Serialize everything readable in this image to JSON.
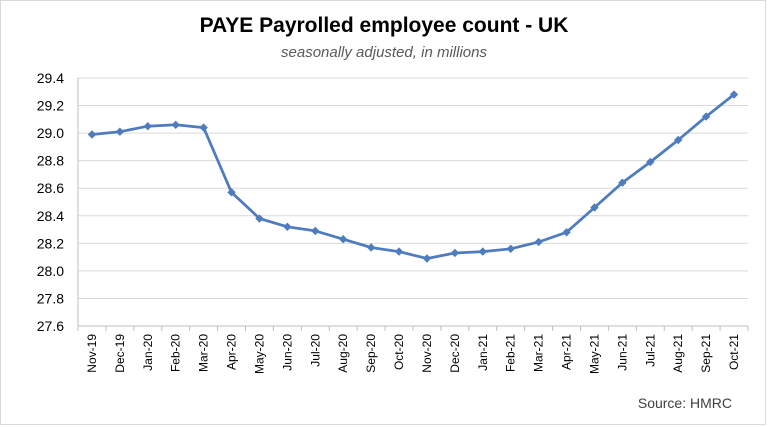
{
  "chart_data": {
    "type": "line",
    "title": "PAYE Payrolled employee count - UK",
    "subtitle": "seasonally adjusted, in millions",
    "source": "Source: HMRC",
    "xlabel": "",
    "ylabel": "",
    "ylim": [
      27.6,
      29.4
    ],
    "yticks": [
      "29.4",
      "29.2",
      "29.0",
      "28.8",
      "28.6",
      "28.4",
      "28.2",
      "28.0",
      "27.8",
      "27.6"
    ],
    "grid": true,
    "categories": [
      "Nov-19",
      "Dec-19",
      "Jan-20",
      "Feb-20",
      "Mar-20",
      "Apr-20",
      "May-20",
      "Jun-20",
      "Jul-20",
      "Aug-20",
      "Sep-20",
      "Oct-20",
      "Nov-20",
      "Dec-20",
      "Jan-21",
      "Feb-21",
      "Mar-21",
      "Apr-21",
      "May-21",
      "Jun-21",
      "Jul-21",
      "Aug-21",
      "Sep-21",
      "Oct-21"
    ],
    "series": [
      {
        "values": [
          28.99,
          29.01,
          29.05,
          29.06,
          29.04,
          28.57,
          28.38,
          28.32,
          28.29,
          28.23,
          28.17,
          28.14,
          28.09,
          28.13,
          28.14,
          28.16,
          28.21,
          28.28,
          28.46,
          28.64,
          28.79,
          28.95,
          29.12,
          29.28
        ]
      }
    ],
    "colors": {
      "line": "#4f7bbf",
      "grid": "#d9d9d9",
      "axis": "#bfbfbf"
    }
  }
}
